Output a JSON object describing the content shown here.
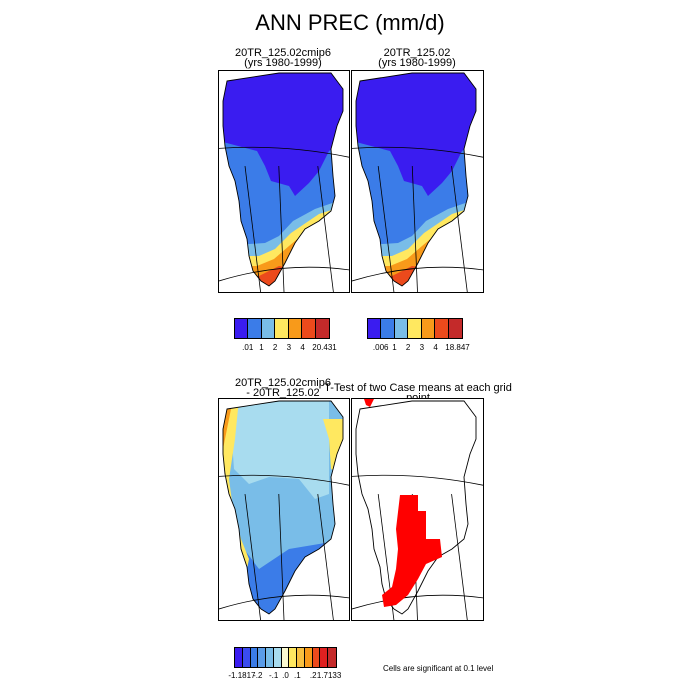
{
  "title": "ANN PREC (mm/d)",
  "panels": {
    "top_left": {
      "title_line1": "20TR_125.02cmip6",
      "title_line2": "(yrs 1980-1999)"
    },
    "top_right": {
      "title_line1": "20TR_125.02",
      "title_line2": "(yrs 1980-1999)"
    },
    "bottom_left": {
      "title_line1": "20TR_125.02cmip6",
      "title_line2": "- 20TR_125.02"
    },
    "bottom_right": {
      "title": "T-Test of two Case means at each grid point"
    }
  },
  "colorbars": {
    "left": {
      "colors": [
        "#3a1cf0",
        "#3b7ce8",
        "#79bde8",
        "#ffe860",
        "#f89a1a",
        "#ec4a1c",
        "#c42a2a"
      ],
      "labels": [
        ".01",
        "1",
        "2",
        "3",
        "4",
        "20.431"
      ]
    },
    "right": {
      "colors": [
        "#3a1cf0",
        "#3b7ce8",
        "#79bde8",
        "#ffe860",
        "#f89a1a",
        "#ec4a1c",
        "#c42a2a"
      ],
      "labels": [
        ".006",
        "1",
        "2",
        "3",
        "4",
        "18.847"
      ]
    },
    "diff": {
      "colors": [
        "#3a1cf0",
        "#3a4cf0",
        "#3b7ce8",
        "#5a9ce8",
        "#79bde8",
        "#a8dcef",
        "#fafad2",
        "#ffe860",
        "#f8c040",
        "#f89a1a",
        "#ec4a1c",
        "#e02020",
        "#c42a2a"
      ],
      "labels": [
        "-1.1817",
        "-.2",
        "-.1",
        ".0",
        ".1",
        ".2",
        "1.7133"
      ]
    }
  },
  "note": "Cells are significant at 0.1 level",
  "colors": {
    "dark_blue": "#3a1cf0",
    "blue": "#3b7ce8",
    "light_blue": "#79bde8",
    "pale_blue": "#a8dcef",
    "yellow": "#ffe860",
    "orange": "#f89a1a",
    "red_orange": "#ec4a1c",
    "dark_red": "#c42a2a",
    "sig_red": "#ff0000",
    "ocean": "#ffffff"
  }
}
